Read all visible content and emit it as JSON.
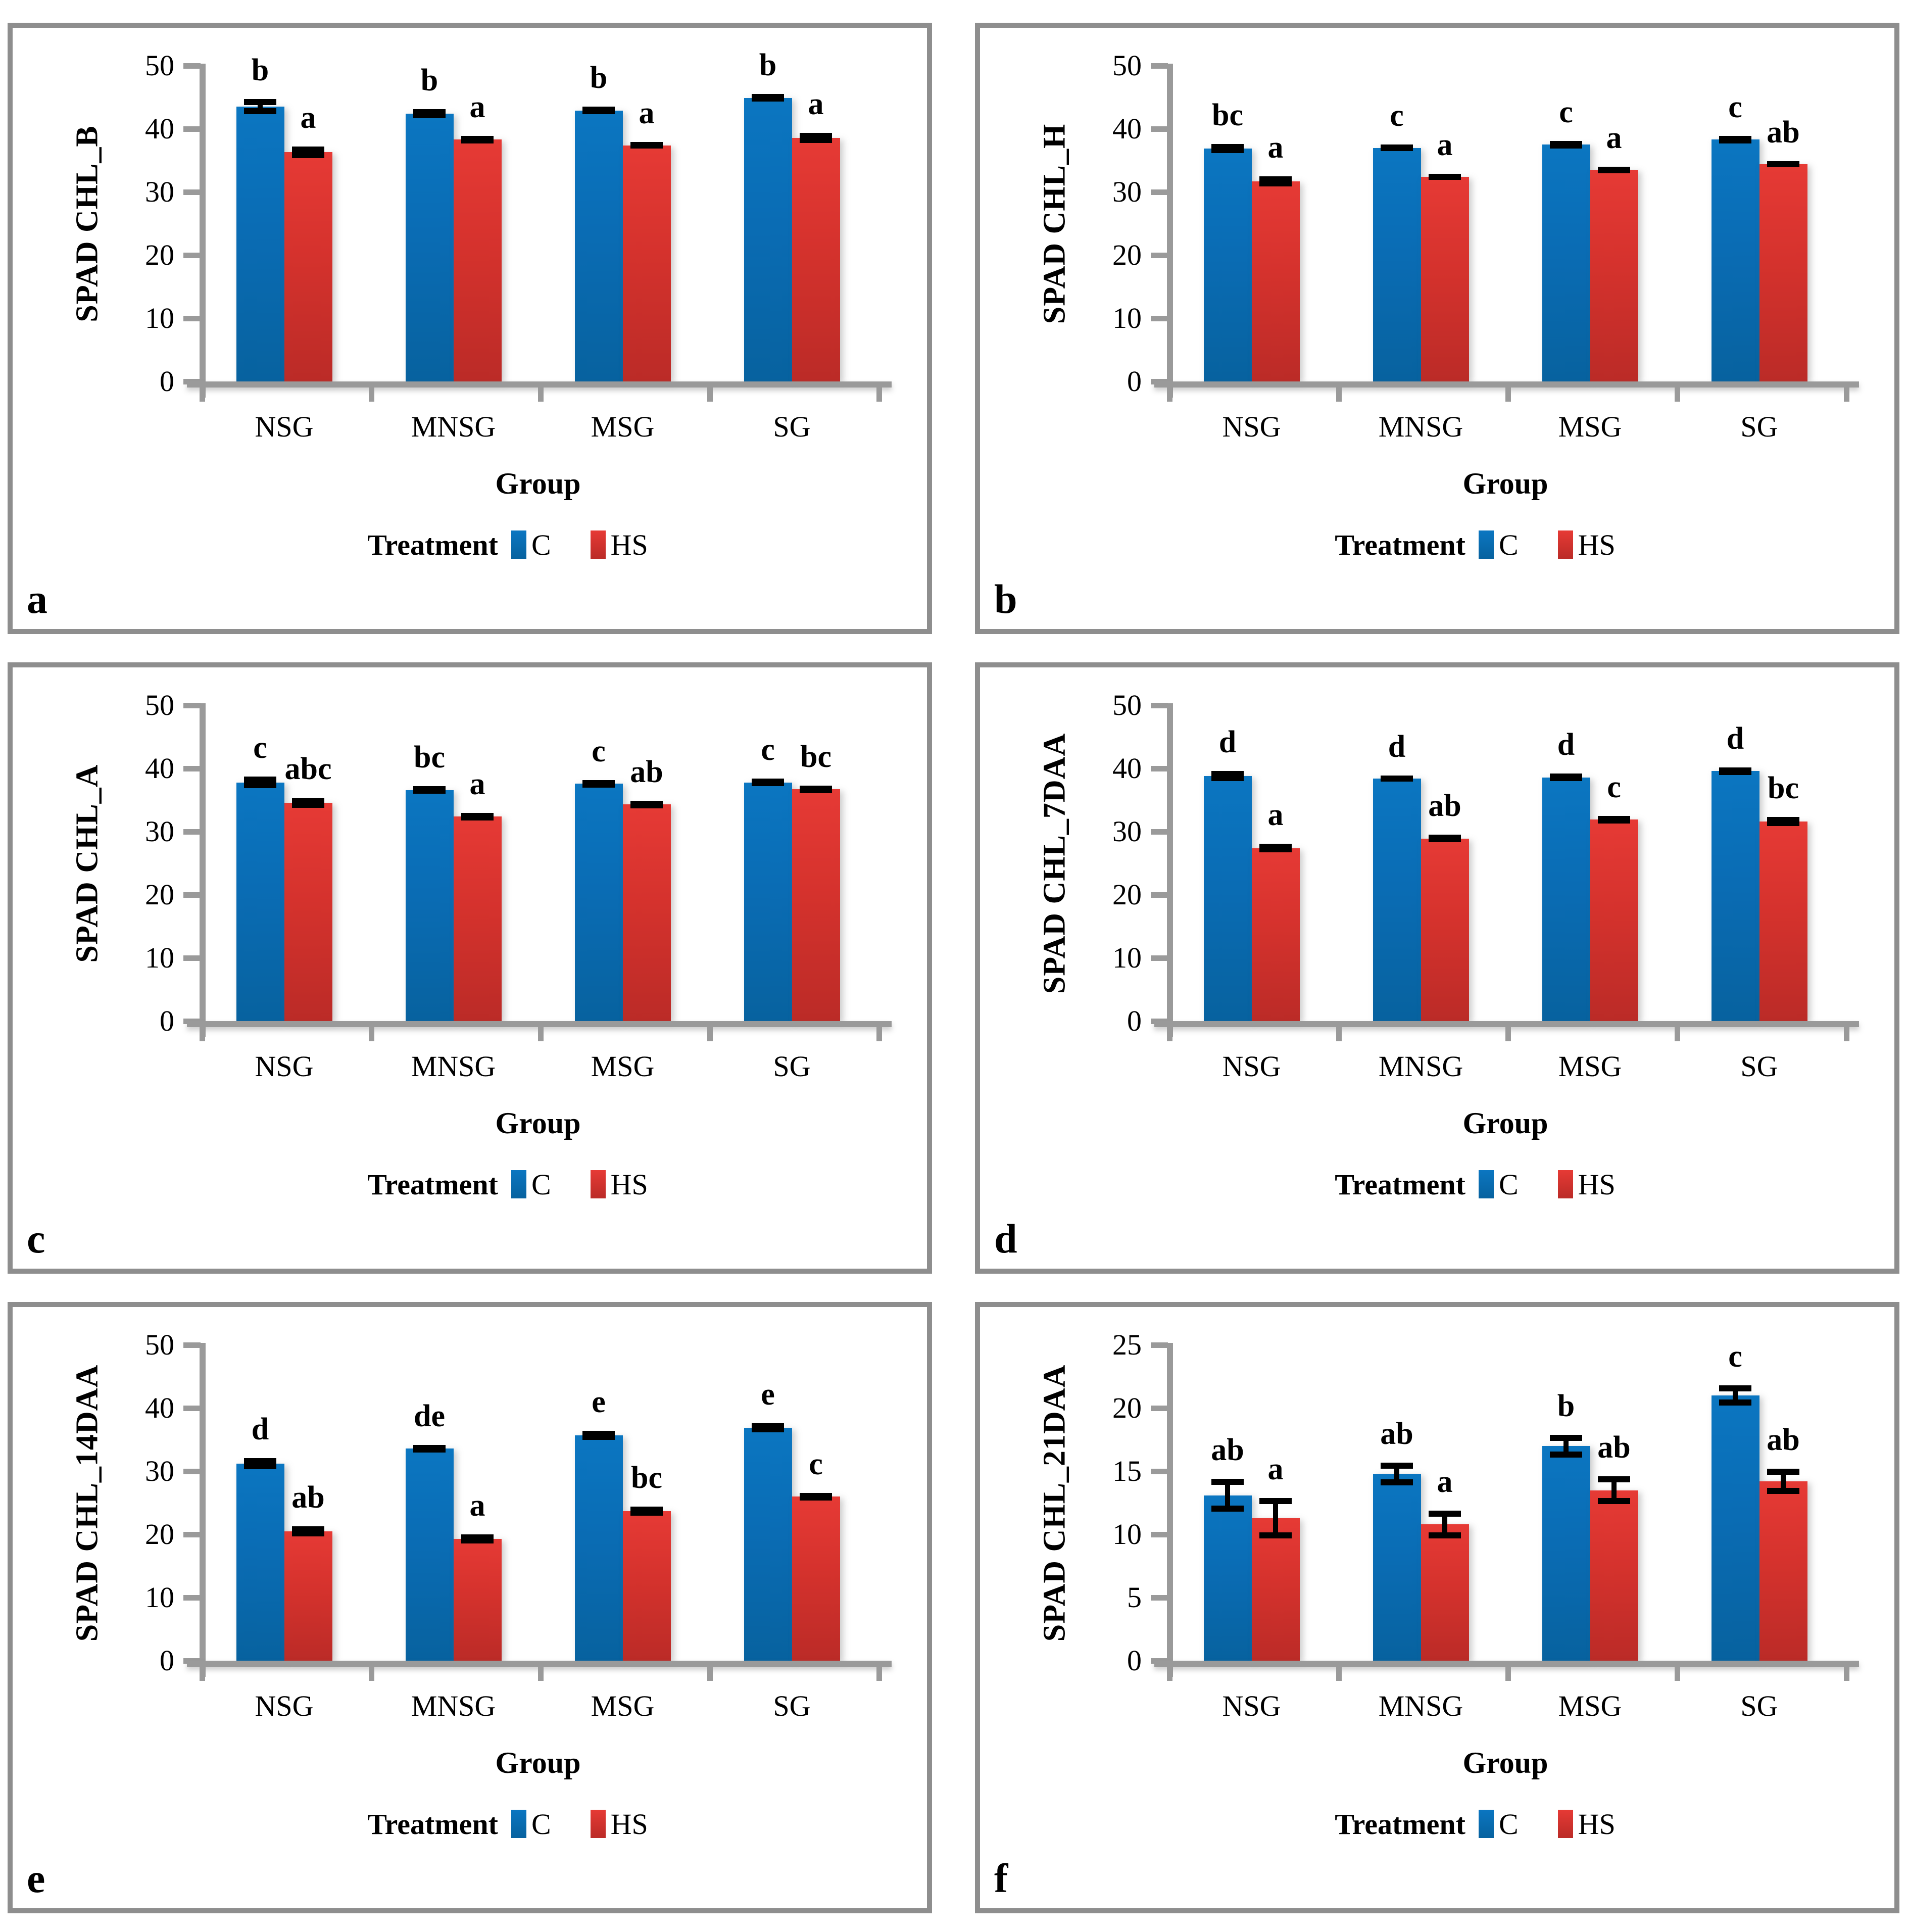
{
  "figure": {
    "xlabel": "Group",
    "legend": {
      "title": "Treatment",
      "items": [
        "C",
        "HS"
      ]
    },
    "colors": {
      "c_blue_top": "#0b76c1",
      "c_blue_bottom": "#07629f",
      "hs_red_top": "#e63a35",
      "hs_red_bottom": "#bb2b27",
      "axis_gray": "#9a9a9a",
      "border_gray": "#8e8e8e",
      "error_black": "#000000"
    }
  },
  "chart_data": [
    {
      "type": "bar",
      "panel_letter": "a",
      "ylabel": "SPAD CHL_B",
      "xlabel": "Group",
      "ylim": [
        0,
        50
      ],
      "ytick_step": 10,
      "grid": false,
      "legend_position": "bottom",
      "categories": [
        "NSG",
        "MNSG",
        "MSG",
        "SG"
      ],
      "legend_title": "Treatment",
      "series": [
        {
          "name": "C",
          "values": [
            43.5,
            42.4,
            42.9,
            44.9
          ],
          "errors": [
            1.2,
            0.7,
            0.6,
            0.6
          ],
          "letters": [
            "b",
            "b",
            "b",
            "b"
          ]
        },
        {
          "name": "HS",
          "values": [
            36.3,
            38.3,
            37.4,
            38.6
          ],
          "errors": [
            0.9,
            0.6,
            0.5,
            0.8
          ],
          "letters": [
            "a",
            "a",
            "a",
            "a"
          ]
        }
      ]
    },
    {
      "type": "bar",
      "panel_letter": "b",
      "ylabel": "SPAD CHL_H",
      "xlabel": "Group",
      "ylim": [
        0,
        50
      ],
      "ytick_step": 10,
      "grid": false,
      "legend_position": "bottom",
      "categories": [
        "NSG",
        "MNSG",
        "MSG",
        "SG"
      ],
      "legend_title": "Treatment",
      "series": [
        {
          "name": "C",
          "values": [
            36.9,
            37.0,
            37.5,
            38.3
          ],
          "errors": [
            0.7,
            0.5,
            0.6,
            0.6
          ],
          "letters": [
            "bc",
            "c",
            "c",
            "c"
          ]
        },
        {
          "name": "HS",
          "values": [
            31.7,
            32.4,
            33.5,
            34.4
          ],
          "errors": [
            0.8,
            0.5,
            0.5,
            0.5
          ],
          "letters": [
            "a",
            "a",
            "a",
            "ab"
          ]
        }
      ]
    },
    {
      "type": "bar",
      "panel_letter": "c",
      "ylabel": "SPAD CHL_A",
      "xlabel": "Group",
      "ylim": [
        0,
        50
      ],
      "ytick_step": 10,
      "grid": false,
      "legend_position": "bottom",
      "categories": [
        "NSG",
        "MNSG",
        "MSG",
        "SG"
      ],
      "legend_title": "Treatment",
      "series": [
        {
          "name": "C",
          "values": [
            37.8,
            36.6,
            37.6,
            37.8
          ],
          "errors": [
            0.9,
            0.6,
            0.6,
            0.6
          ],
          "letters": [
            "c",
            "bc",
            "c",
            "c"
          ]
        },
        {
          "name": "HS",
          "values": [
            34.6,
            32.4,
            34.3,
            36.7
          ],
          "errors": [
            0.8,
            0.6,
            0.6,
            0.6
          ],
          "letters": [
            "abc",
            "a",
            "ab",
            "bc"
          ]
        }
      ]
    },
    {
      "type": "bar",
      "panel_letter": "d",
      "ylabel": "SPAD CHL_7DAA",
      "xlabel": "Group",
      "ylim": [
        0,
        50
      ],
      "ytick_step": 10,
      "grid": false,
      "legend_position": "bottom",
      "categories": [
        "NSG",
        "MNSG",
        "MSG",
        "SG"
      ],
      "legend_title": "Treatment",
      "series": [
        {
          "name": "C",
          "values": [
            38.8,
            38.4,
            38.6,
            39.6
          ],
          "errors": [
            0.8,
            0.5,
            0.6,
            0.6
          ],
          "letters": [
            "d",
            "d",
            "d",
            "d"
          ]
        },
        {
          "name": "HS",
          "values": [
            27.4,
            28.9,
            31.9,
            31.6
          ],
          "errors": [
            0.7,
            0.6,
            0.6,
            0.7
          ],
          "letters": [
            "a",
            "ab",
            "c",
            "bc"
          ]
        }
      ]
    },
    {
      "type": "bar",
      "panel_letter": "e",
      "ylabel": "SPAD CHL_14DAA",
      "xlabel": "Group",
      "ylim": [
        0,
        50
      ],
      "ytick_step": 10,
      "grid": false,
      "legend_position": "bottom",
      "categories": [
        "NSG",
        "MNSG",
        "MSG",
        "SG"
      ],
      "legend_title": "Treatment",
      "series": [
        {
          "name": "C",
          "values": [
            31.2,
            33.6,
            35.7,
            36.9
          ],
          "errors": [
            0.9,
            0.6,
            0.7,
            0.7
          ],
          "letters": [
            "d",
            "de",
            "e",
            "e"
          ]
        },
        {
          "name": "HS",
          "values": [
            20.5,
            19.3,
            23.7,
            26.0
          ],
          "errors": [
            0.8,
            0.7,
            0.7,
            0.6
          ],
          "letters": [
            "ab",
            "a",
            "bc",
            "c"
          ]
        }
      ]
    },
    {
      "type": "bar",
      "panel_letter": "f",
      "ylabel": "SPAD CHL_21DAA",
      "xlabel": "Group",
      "ylim": [
        0,
        25
      ],
      "ytick_step": 5,
      "grid": false,
      "legend_position": "bottom",
      "categories": [
        "NSG",
        "MNSG",
        "MSG",
        "SG"
      ],
      "legend_title": "Treatment",
      "series": [
        {
          "name": "C",
          "values": [
            13.1,
            14.8,
            17.0,
            21.0
          ],
          "errors": [
            1.3,
            0.9,
            0.9,
            0.8
          ],
          "letters": [
            "ab",
            "ab",
            "b",
            "c"
          ]
        },
        {
          "name": "HS",
          "values": [
            11.3,
            10.8,
            13.5,
            14.2
          ],
          "errors": [
            1.6,
            1.1,
            1.1,
            1.0
          ],
          "letters": [
            "a",
            "a",
            "ab",
            "ab"
          ]
        }
      ]
    }
  ]
}
